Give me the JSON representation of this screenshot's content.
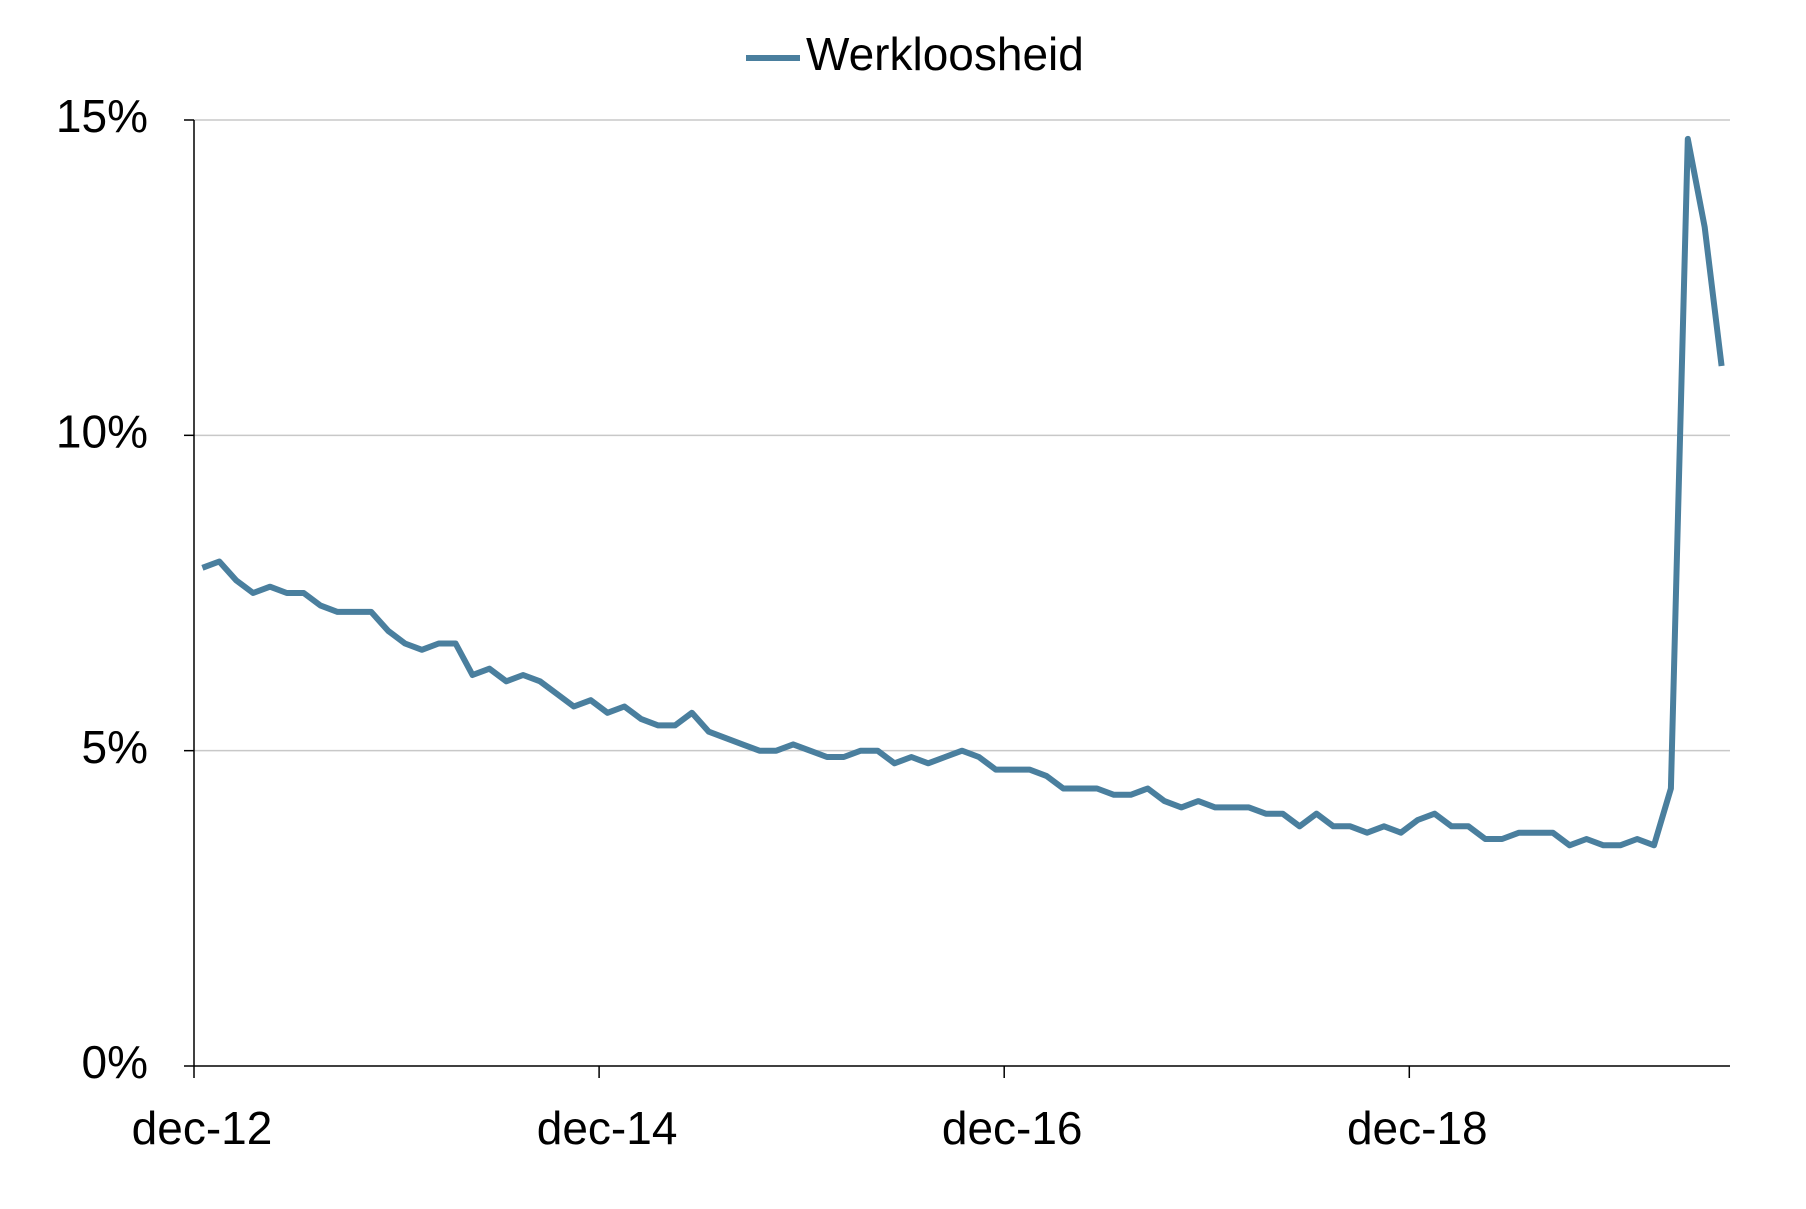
{
  "chart_data": {
    "type": "line",
    "categories": [
      "dec-12",
      null,
      null,
      null,
      null,
      null,
      null,
      null,
      null,
      null,
      null,
      null,
      null,
      null,
      null,
      null,
      null,
      null,
      null,
      null,
      null,
      null,
      null,
      null,
      "dec-14",
      null,
      null,
      null,
      null,
      null,
      null,
      null,
      null,
      null,
      null,
      null,
      null,
      null,
      null,
      null,
      null,
      null,
      null,
      null,
      null,
      null,
      null,
      null,
      "dec-16",
      null,
      null,
      null,
      null,
      null,
      null,
      null,
      null,
      null,
      null,
      null,
      null,
      null,
      null,
      null,
      null,
      null,
      null,
      null,
      null,
      null,
      null,
      null,
      "dec-18",
      null,
      null,
      null,
      null,
      null,
      null,
      null,
      null,
      null,
      null,
      null,
      null,
      null,
      null,
      null,
      null,
      null,
      null
    ],
    "series": [
      {
        "name": "Werkloosheid",
        "color": "#4a7f9e",
        "values": [
          7.9,
          8.0,
          7.7,
          7.5,
          7.6,
          7.5,
          7.5,
          7.3,
          7.2,
          7.2,
          7.2,
          6.9,
          6.7,
          6.6,
          6.7,
          6.7,
          6.2,
          6.3,
          6.1,
          6.2,
          6.1,
          5.9,
          5.7,
          5.8,
          5.6,
          5.7,
          5.5,
          5.4,
          5.4,
          5.6,
          5.3,
          5.2,
          5.1,
          5.0,
          5.0,
          5.1,
          5.0,
          4.9,
          4.9,
          5.0,
          5.0,
          4.8,
          4.9,
          4.8,
          4.9,
          5.0,
          4.9,
          4.7,
          4.7,
          4.7,
          4.6,
          4.4,
          4.4,
          4.4,
          4.3,
          4.3,
          4.4,
          4.2,
          4.1,
          4.2,
          4.1,
          4.1,
          4.1,
          4.0,
          4.0,
          3.8,
          4.0,
          3.8,
          3.8,
          3.7,
          3.8,
          3.7,
          3.9,
          4.0,
          3.8,
          3.8,
          3.6,
          3.6,
          3.7,
          3.7,
          3.7,
          3.5,
          3.6,
          3.5,
          3.5,
          3.6,
          3.5,
          4.4,
          14.7,
          13.3,
          11.1
        ]
      }
    ],
    "ylim": [
      0,
      15
    ],
    "yticks": [
      {
        "value": 0,
        "label": "0%"
      },
      {
        "value": 5,
        "label": "5%"
      },
      {
        "value": 10,
        "label": "10%"
      },
      {
        "value": 15,
        "label": "15%"
      }
    ],
    "grid": true,
    "legend": "top"
  }
}
